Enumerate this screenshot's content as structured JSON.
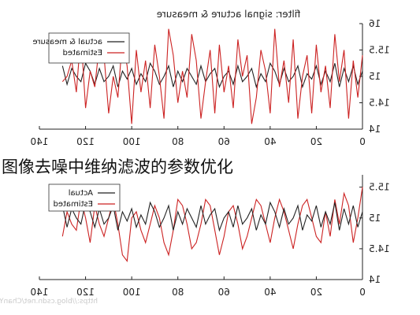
{
  "overlay_caption": "图像去噪中维纳滤波的参数优化",
  "watermark": "https://blog.csdn.net/ChanYin",
  "chart_data": [
    {
      "type": "line",
      "title": "filter: signal acture & measure",
      "xlim": [
        0,
        140
      ],
      "ylim": [
        14,
        16
      ],
      "xticks": [
        0,
        20,
        40,
        60,
        80,
        100,
        120,
        140
      ],
      "yticks": [
        14,
        14.5,
        15,
        15.5,
        16
      ],
      "x_axis_reversed": true,
      "y_axis_side": "right",
      "legend": "top-left",
      "colors": {
        "actual": "#222222",
        "estimated": "#cc2222"
      },
      "x": [
        0,
        2,
        4,
        6,
        8,
        10,
        12,
        14,
        16,
        18,
        20,
        22,
        24,
        26,
        28,
        30,
        32,
        34,
        36,
        38,
        40,
        42,
        44,
        46,
        48,
        50,
        52,
        54,
        56,
        58,
        60,
        62,
        64,
        66,
        68,
        70,
        72,
        74,
        76,
        78,
        80,
        82,
        84,
        86,
        88,
        90,
        92,
        94,
        96,
        98,
        100,
        102,
        104,
        106,
        108,
        110,
        112,
        114,
        116,
        118,
        120,
        122,
        124,
        126,
        128,
        130
      ],
      "series": [
        {
          "name": "actual & measure",
          "color": "#222222",
          "values": [
            15.1,
            14.85,
            15.2,
            14.9,
            15.15,
            14.8,
            15.25,
            14.9,
            15.1,
            14.85,
            15.2,
            14.95,
            15.05,
            14.8,
            15.2,
            15.0,
            14.9,
            15.15,
            14.85,
            15.1,
            15.25,
            14.9,
            15.05,
            14.8,
            15.15,
            15.0,
            14.9,
            15.2,
            14.85,
            15.1,
            15.0,
            14.8,
            15.15,
            15.05,
            14.9,
            15.2,
            14.85,
            15.0,
            15.15,
            14.9,
            15.1,
            14.8,
            15.2,
            15.0,
            14.85,
            15.1,
            15.25,
            14.9,
            15.05,
            14.85,
            15.15,
            14.95,
            15.1,
            14.8,
            15.2,
            15.0,
            14.9,
            15.15,
            14.85,
            15.1,
            15.25,
            14.9,
            15.0,
            15.15,
            14.85,
            15.2
          ]
        },
        {
          "name": "Estimated",
          "color": "#cc2222",
          "values": [
            15.4,
            14.6,
            15.3,
            14.2,
            15.5,
            14.9,
            15.8,
            14.4,
            15.2,
            14.7,
            15.6,
            14.3,
            15.4,
            15.0,
            14.2,
            15.7,
            14.5,
            15.3,
            14.8,
            15.9,
            14.3,
            15.1,
            15.5,
            14.6,
            14.1,
            15.4,
            15.0,
            15.7,
            14.4,
            15.2,
            14.7,
            15.6,
            14.3,
            15.5,
            14.9,
            14.2,
            15.3,
            15.8,
            14.6,
            15.1,
            14.5,
            15.4,
            15.9,
            14.2,
            15.0,
            15.6,
            14.4,
            15.3,
            14.7,
            15.5,
            14.1,
            15.2,
            15.7,
            14.6,
            15.0,
            14.3,
            15.4,
            15.6,
            14.8,
            15.1,
            14.4,
            15.8,
            14.7,
            15.3,
            15.0,
            14.9
          ]
        }
      ]
    },
    {
      "type": "line",
      "title": "",
      "xlim": [
        0,
        140
      ],
      "ylim": [
        14,
        15.7
      ],
      "xticks": [
        0,
        20,
        40,
        60,
        80,
        100,
        120,
        140
      ],
      "yticks": [
        14,
        14.5,
        15,
        15.5
      ],
      "x_axis_reversed": true,
      "y_axis_side": "right",
      "legend": "top-left",
      "colors": {
        "actual": "#222222",
        "estimated": "#cc2222"
      },
      "x": [
        0,
        2,
        4,
        6,
        8,
        10,
        12,
        14,
        16,
        18,
        20,
        22,
        24,
        26,
        28,
        30,
        32,
        34,
        36,
        38,
        40,
        42,
        44,
        46,
        48,
        50,
        52,
        54,
        56,
        58,
        60,
        62,
        64,
        66,
        68,
        70,
        72,
        74,
        76,
        78,
        80,
        82,
        84,
        86,
        88,
        90,
        92,
        94,
        96,
        98,
        100,
        102,
        104,
        106,
        108,
        110,
        112,
        114,
        116,
        118,
        120,
        122,
        124,
        126,
        128,
        130
      ],
      "series": [
        {
          "name": "Actual",
          "color": "#222222",
          "values": [
            15.1,
            14.85,
            15.2,
            14.9,
            15.15,
            14.8,
            15.25,
            14.9,
            15.1,
            14.85,
            15.2,
            14.95,
            15.05,
            14.8,
            15.2,
            15.0,
            14.9,
            15.15,
            14.85,
            15.1,
            15.25,
            14.9,
            15.05,
            14.8,
            15.15,
            15.0,
            14.9,
            15.2,
            14.85,
            15.1,
            15.0,
            14.8,
            15.15,
            15.05,
            14.9,
            15.2,
            14.85,
            15.0,
            15.15,
            14.9,
            15.1,
            14.8,
            15.2,
            15.0,
            14.85,
            15.1,
            15.25,
            14.9,
            15.05,
            14.85,
            15.15,
            14.95,
            15.1,
            14.8,
            15.2,
            15.0,
            14.9,
            15.15,
            14.85,
            15.1,
            15.25,
            14.9,
            15.0,
            15.15,
            14.85,
            15.2
          ]
        },
        {
          "name": "Estimated",
          "color": "#cc2222",
          "values": [
            15.5,
            15.0,
            14.6,
            15.2,
            15.4,
            14.9,
            15.3,
            14.7,
            15.1,
            14.6,
            14.7,
            15.0,
            15.3,
            15.2,
            14.9,
            14.5,
            14.8,
            15.1,
            15.3,
            15.0,
            14.6,
            14.9,
            15.2,
            15.3,
            15.0,
            14.7,
            14.5,
            14.9,
            15.2,
            15.1,
            14.7,
            14.4,
            14.8,
            15.2,
            15.3,
            14.9,
            14.6,
            14.5,
            14.9,
            15.2,
            15.3,
            14.8,
            14.4,
            14.6,
            15.0,
            15.2,
            14.9,
            14.6,
            14.8,
            15.1,
            15.0,
            14.3,
            14.4,
            14.9,
            15.3,
            15.0,
            14.7,
            14.9,
            15.2,
            14.6,
            15.0,
            15.3,
            14.8,
            14.9,
            15.1,
            14.7
          ]
        }
      ]
    }
  ]
}
